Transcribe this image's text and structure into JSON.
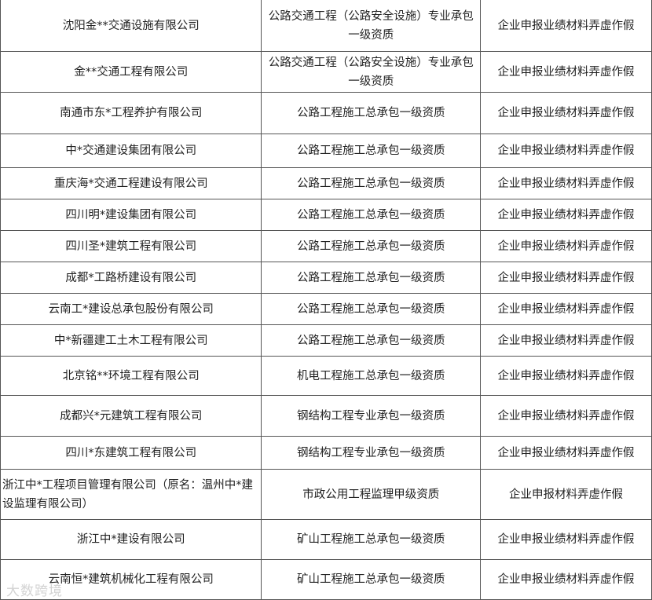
{
  "rows": [
    {
      "company": "沈阳金**交通设施有限公司",
      "qualification": "公路交通工程（公路安全设施）专业承包一级资质",
      "issue": "企业申报业绩材料弄虚作假"
    },
    {
      "company": "金**交通工程有限公司",
      "qualification": "公路交通工程（公路安全设施）专业承包一级资质",
      "issue": "企业申报业绩材料弄虚作假"
    },
    {
      "company": "南通市东*工程养护有限公司",
      "qualification": "公路工程施工总承包一级资质",
      "issue": "企业申报业绩材料弄虚作假"
    },
    {
      "company": "中*交通建设集团有限公司",
      "qualification": "公路工程施工总承包一级资质",
      "issue": "企业申报业绩材料弄虚作假"
    },
    {
      "company": "重庆海*交通工程建设有限公司",
      "qualification": "公路工程施工总承包一级资质",
      "issue": "企业申报业绩材料弄虚作假"
    },
    {
      "company": "四川明*建设集团有限公司",
      "qualification": "公路工程施工总承包一级资质",
      "issue": "企业申报业绩材料弄虚作假"
    },
    {
      "company": "四川圣*建筑工程有限公司",
      "qualification": "公路工程施工总承包一级资质",
      "issue": "企业申报业绩材料弄虚作假"
    },
    {
      "company": "成都*工路桥建设有限公司",
      "qualification": "公路工程施工总承包一级资质",
      "issue": "企业申报业绩材料弄虚作假"
    },
    {
      "company": "云南工*建设总承包股份有限公司",
      "qualification": "公路工程施工总承包一级资质",
      "issue": "企业申报业绩材料弄虚作假"
    },
    {
      "company": "中*新疆建工土木工程有限公司",
      "qualification": "公路工程施工总承包一级资质",
      "issue": "企业申报业绩材料弄虚作假"
    },
    {
      "company": "北京铭**环境工程有限公司",
      "qualification": "机电工程施工总承包一级资质",
      "issue": "企业申报业绩材料弄虚作假"
    },
    {
      "company": "成都兴*元建筑工程有限公司",
      "qualification": "钢结构工程专业承包一级资质",
      "issue": "企业申报业绩材料弄虚作假"
    },
    {
      "company": "四川*东建筑工程有限公司",
      "qualification": "钢结构工程专业承包一级资质",
      "issue": "企业申报业绩材料弄虚作假"
    },
    {
      "company": "浙江中*工程项目管理有限公司（原名：温州中*建设监理有限公司）",
      "qualification": "市政公用工程监理甲级资质",
      "issue": "企业申报材料弄虚作假"
    },
    {
      "company": "浙江中*建设有限公司",
      "qualification": "矿山工程施工总承包一级资质",
      "issue": "企业申报业绩材料弄虚作假"
    },
    {
      "company": "云南恒*建筑机械化工程有限公司",
      "qualification": "矿山工程施工总承包一级资质",
      "issue": "企业申报业绩材料弄虚作假"
    }
  ],
  "watermark": "大数跨境"
}
